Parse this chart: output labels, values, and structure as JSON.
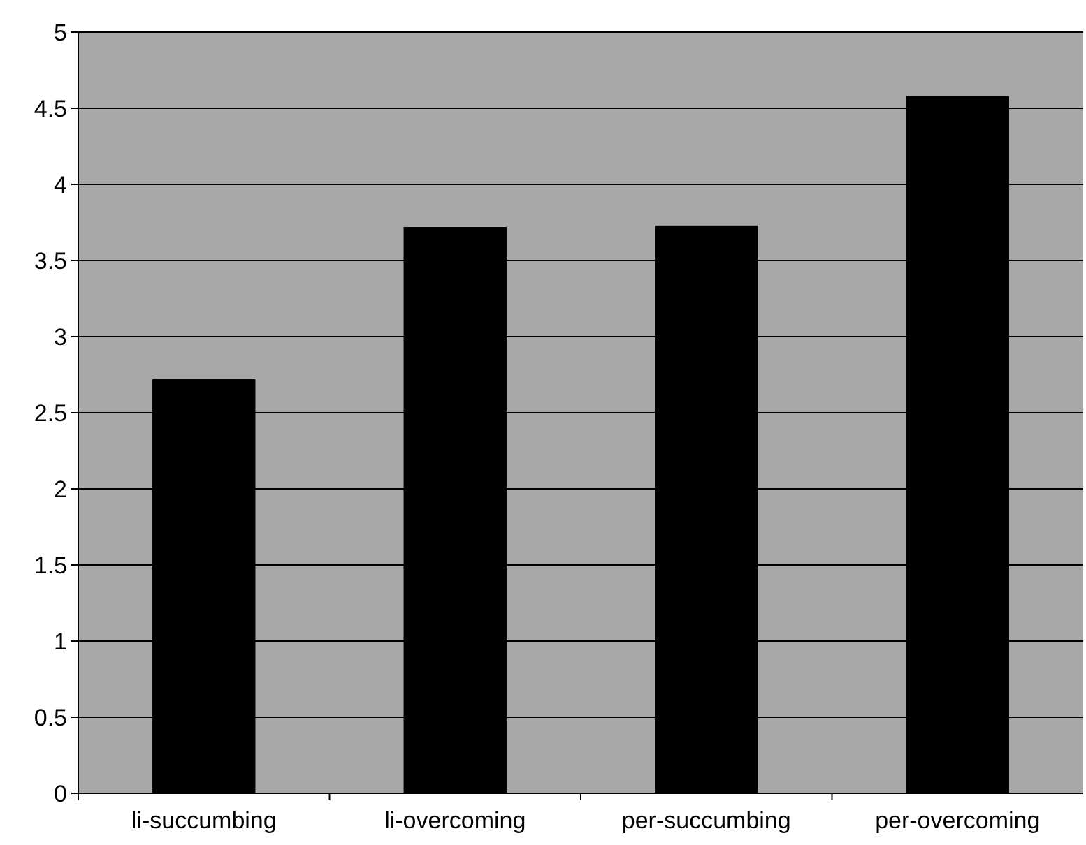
{
  "chart_data": {
    "type": "bar",
    "categories": [
      "li-succumbing",
      "li-overcoming",
      "per-succumbing",
      "per-overcoming"
    ],
    "values": [
      2.72,
      3.72,
      3.73,
      4.58
    ],
    "color": "#000000",
    "ylim": [
      0,
      5
    ],
    "yticks": [
      0,
      0.5,
      1,
      1.5,
      2,
      2.5,
      3,
      3.5,
      4,
      4.5,
      5
    ],
    "grid": "y"
  }
}
